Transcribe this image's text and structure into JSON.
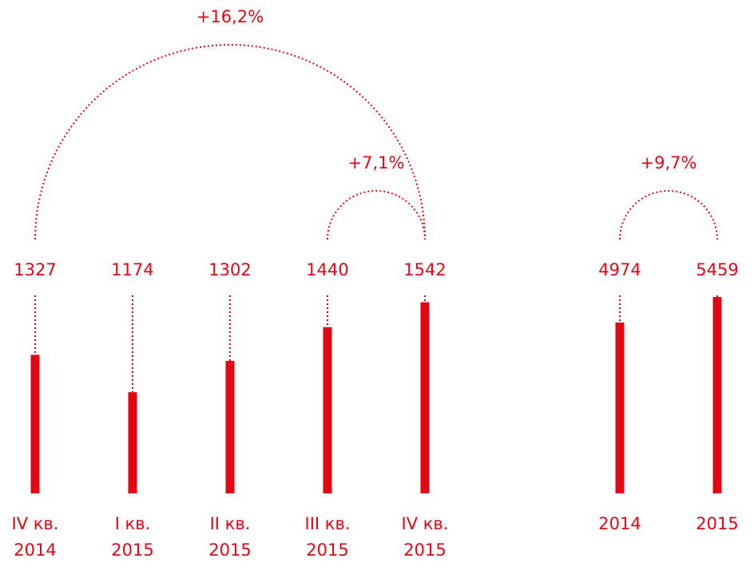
{
  "chart_data": [
    {
      "type": "bar",
      "color": "#e30613",
      "categories": [
        [
          "IV кв.",
          "2014"
        ],
        [
          "I кв.",
          "2015"
        ],
        [
          "II кв.",
          "2015"
        ],
        [
          "III кв.",
          "2015"
        ],
        [
          "IV кв.",
          "2015"
        ]
      ],
      "values": [
        1327,
        1174,
        1302,
        1440,
        1542
      ],
      "ylim": [
        760,
        1570
      ],
      "annotations": [
        {
          "text": "+16,2%",
          "from": 0,
          "to": 4
        },
        {
          "text": "+7,1%",
          "from": 3,
          "to": 4
        }
      ]
    },
    {
      "type": "bar",
      "color": "#e30613",
      "categories": [
        [
          "2014"
        ],
        [
          "2015"
        ]
      ],
      "values": [
        4974,
        5459
      ],
      "ylim": [
        1730,
        5490
      ],
      "annotations": [
        {
          "text": "+9,7%",
          "from": 0,
          "to": 1
        }
      ]
    }
  ]
}
